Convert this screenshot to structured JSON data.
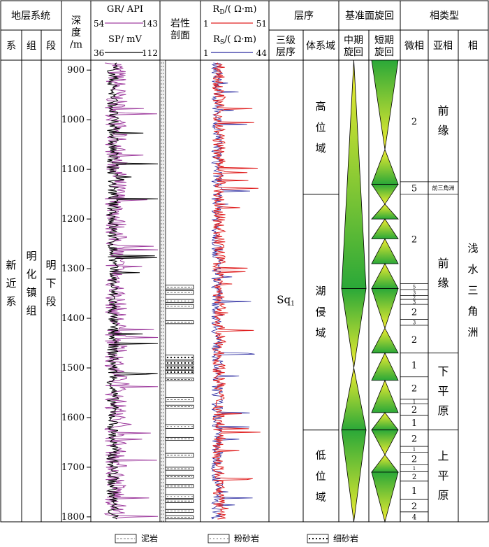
{
  "header": {
    "strat_system": "地层系统",
    "xi": "系",
    "zu": "组",
    "duan": "段",
    "depth_lines": [
      "深",
      "度",
      "/m"
    ],
    "gr_label": "GR/ API",
    "gr_min": "54",
    "gr_max": "143",
    "sp_label": "SP/ mV",
    "sp_min": "36",
    "sp_max": "112",
    "lith_lines": [
      "岩性",
      "剖面"
    ],
    "rd_label": "R_D/( Ω·m)",
    "rd_min": "1",
    "rd_max": "51",
    "rs_label": "R_S/( Ω·m)",
    "rs_min": "1",
    "rs_max": "44",
    "sequence": "层序",
    "third_order_lines": [
      "三级",
      "层序"
    ],
    "systems_tract": "体系域",
    "base_level": "基准面旋回",
    "mid_cycle_lines": [
      "中期",
      "旋回"
    ],
    "short_cycle_lines": [
      "短期",
      "旋回"
    ],
    "facies": "相类型",
    "microfacies": "微相",
    "subfacies": "亚相",
    "facies_col": "相"
  },
  "strat": {
    "xi_chars": [
      "新",
      "近",
      "系"
    ],
    "zu_chars": [
      "明",
      "化",
      "镇",
      "组"
    ],
    "duan_chars": [
      "明",
      "下",
      "段"
    ]
  },
  "sequence_label": "Sq",
  "sequence_sub": "1",
  "systems_tracts": [
    {
      "chars": [
        "高",
        "位",
        "域"
      ],
      "top": 880,
      "bottom": 1150
    },
    {
      "chars": [
        "湖",
        "侵",
        "域"
      ],
      "top": 1150,
      "bottom": 1625
    },
    {
      "chars": [
        "低",
        "位",
        "域"
      ],
      "top": 1625,
      "bottom": 1810
    }
  ],
  "depth_ticks": [
    "900",
    "1000",
    "1100",
    "1200",
    "1300",
    "1400",
    "1500",
    "1600",
    "1700",
    "1800"
  ],
  "depth_range": [
    880,
    1810
  ],
  "mid_cycles": [
    {
      "top": 880,
      "bottom": 1340,
      "dir": "up"
    },
    {
      "top": 1340,
      "bottom": 1500,
      "dir": "down"
    },
    {
      "top": 1500,
      "bottom": 1625,
      "dir": "up"
    },
    {
      "top": 1625,
      "bottom": 1810,
      "dir": "down"
    }
  ],
  "short_cycles": [
    {
      "top": 880,
      "bottom": 1060,
      "dir": "down"
    },
    {
      "top": 1060,
      "bottom": 1130,
      "dir": "up"
    },
    {
      "top": 1130,
      "bottom": 1170,
      "dir": "down"
    },
    {
      "top": 1170,
      "bottom": 1200,
      "dir": "up"
    },
    {
      "top": 1200,
      "bottom": 1240,
      "dir": "up"
    },
    {
      "top": 1240,
      "bottom": 1290,
      "dir": "up"
    },
    {
      "top": 1290,
      "bottom": 1340,
      "dir": "up"
    },
    {
      "top": 1340,
      "bottom": 1420,
      "dir": "down"
    },
    {
      "top": 1420,
      "bottom": 1470,
      "dir": "up"
    },
    {
      "top": 1470,
      "bottom": 1525,
      "dir": "up"
    },
    {
      "top": 1525,
      "bottom": 1590,
      "dir": "up"
    },
    {
      "top": 1590,
      "bottom": 1625,
      "dir": "up"
    },
    {
      "top": 1625,
      "bottom": 1675,
      "dir": "down"
    },
    {
      "top": 1675,
      "bottom": 1710,
      "dir": "up"
    },
    {
      "top": 1710,
      "bottom": 1810,
      "dir": "down"
    }
  ],
  "microfacies": [
    {
      "label": "2",
      "top": 880,
      "bottom": 1125
    },
    {
      "label": "5",
      "top": 1125,
      "bottom": 1150
    },
    {
      "label": "2",
      "top": 1150,
      "bottom": 1330
    },
    {
      "label": "5",
      "top": 1330,
      "bottom": 1342
    },
    {
      "label": "3",
      "top": 1342,
      "bottom": 1354
    },
    {
      "label": "2",
      "top": 1354,
      "bottom": 1362
    },
    {
      "label": "3",
      "top": 1362,
      "bottom": 1372
    },
    {
      "label": "2",
      "top": 1372,
      "bottom": 1402
    },
    {
      "label": "3",
      "top": 1402,
      "bottom": 1414
    },
    {
      "label": "2",
      "top": 1414,
      "bottom": 1470
    },
    {
      "label": "1",
      "top": 1470,
      "bottom": 1518
    },
    {
      "label": "2",
      "top": 1518,
      "bottom": 1563
    },
    {
      "label": "1",
      "top": 1563,
      "bottom": 1572
    },
    {
      "label": "2",
      "top": 1572,
      "bottom": 1595
    },
    {
      "label": "1",
      "top": 1595,
      "bottom": 1625
    },
    {
      "label": "2",
      "top": 1625,
      "bottom": 1658
    },
    {
      "label": "1",
      "top": 1658,
      "bottom": 1670
    },
    {
      "label": "2",
      "top": 1670,
      "bottom": 1695
    },
    {
      "label": "1",
      "top": 1695,
      "bottom": 1709
    },
    {
      "label": "2",
      "top": 1709,
      "bottom": 1728
    },
    {
      "label": "1",
      "top": 1728,
      "bottom": 1765
    },
    {
      "label": "2",
      "top": 1765,
      "bottom": 1790
    },
    {
      "label": "4",
      "top": 1790,
      "bottom": 1810
    }
  ],
  "subfacies": [
    {
      "chars": [
        "前",
        "缘"
      ],
      "top": 880,
      "bottom": 1125
    },
    {
      "chars": [
        "前三角洲"
      ],
      "top": 1125,
      "bottom": 1150,
      "small": true
    },
    {
      "chars": [
        "前",
        "缘"
      ],
      "top": 1150,
      "bottom": 1470
    },
    {
      "chars": [
        "下",
        "平",
        "原"
      ],
      "top": 1470,
      "bottom": 1625
    },
    {
      "chars": [
        "上",
        "平",
        "原"
      ],
      "top": 1625,
      "bottom": 1810
    }
  ],
  "facies_chars": [
    "浅",
    "水",
    "三",
    "角",
    "洲"
  ],
  "lith_beds": [
    {
      "top": 1333,
      "bottom": 1341,
      "type": "mud"
    },
    {
      "top": 1344,
      "bottom": 1352,
      "type": "mud"
    },
    {
      "top": 1362,
      "bottom": 1368,
      "type": "silt"
    },
    {
      "top": 1372,
      "bottom": 1380,
      "type": "mud"
    },
    {
      "top": 1405,
      "bottom": 1411,
      "type": "mud"
    },
    {
      "top": 1474,
      "bottom": 1484,
      "type": "fine"
    },
    {
      "top": 1486,
      "bottom": 1494,
      "type": "fine"
    },
    {
      "top": 1496,
      "bottom": 1503,
      "type": "fine"
    },
    {
      "top": 1505,
      "bottom": 1512,
      "type": "fine"
    },
    {
      "top": 1520,
      "bottom": 1526,
      "type": "mud"
    },
    {
      "top": 1560,
      "bottom": 1568,
      "type": "mud"
    },
    {
      "top": 1575,
      "bottom": 1581,
      "type": "mud"
    },
    {
      "top": 1614,
      "bottom": 1622,
      "type": "silt"
    },
    {
      "top": 1640,
      "bottom": 1646,
      "type": "mud"
    },
    {
      "top": 1672,
      "bottom": 1680,
      "type": "mud"
    },
    {
      "top": 1700,
      "bottom": 1706,
      "type": "mud"
    },
    {
      "top": 1716,
      "bottom": 1722,
      "type": "mud"
    },
    {
      "top": 1735,
      "bottom": 1741,
      "type": "mud"
    },
    {
      "top": 1755,
      "bottom": 1763,
      "type": "silt"
    },
    {
      "top": 1765,
      "bottom": 1771,
      "type": "mud"
    },
    {
      "top": 1785,
      "bottom": 1791,
      "type": "mud"
    },
    {
      "top": 1798,
      "bottom": 1804,
      "type": "mud"
    }
  ],
  "legend": [
    {
      "type": "mud",
      "label": "泥岩"
    },
    {
      "type": "silt",
      "label": "粉砂岩"
    },
    {
      "type": "fine",
      "label": "细砂岩"
    }
  ],
  "colors": {
    "gr": "#a040a0",
    "sp": "#000000",
    "rd": "#e02020",
    "rs": "#2a2aa0",
    "gradient_top": "#f2ee30",
    "gradient_bottom": "#2aa838"
  }
}
